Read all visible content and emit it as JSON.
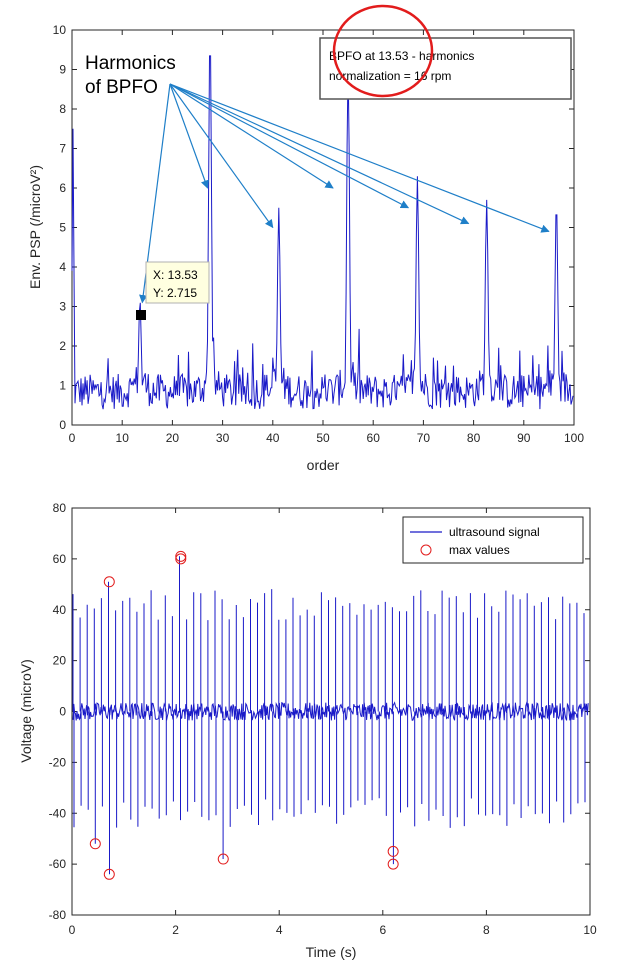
{
  "chart_data": [
    {
      "type": "line",
      "xlabel": "order",
      "ylabel": "Env. PSP (/microV²)",
      "xlim": [
        0,
        100
      ],
      "ylim": [
        0,
        10
      ],
      "xticks": [
        0,
        10,
        20,
        30,
        40,
        50,
        60,
        70,
        80,
        90,
        100
      ],
      "yticks": [
        0,
        1,
        2,
        3,
        4,
        5,
        6,
        7,
        8,
        9,
        10
      ],
      "grid": false,
      "line_color": "#1a1ac8",
      "series": [
        {
          "peaks": [
            {
              "x": 0.2,
              "y": 7.5
            },
            {
              "x": 13.53,
              "y": 2.715
            },
            {
              "x": 27.5,
              "y": 9.5
            },
            {
              "x": 41.2,
              "y": 5.0
            },
            {
              "x": 55.0,
              "y": 8.7
            },
            {
              "x": 68.8,
              "y": 5.8
            },
            {
              "x": 82.6,
              "y": 5.2
            },
            {
              "x": 96.5,
              "y": 5.2
            }
          ],
          "noise_baseline": 0.8
        }
      ],
      "annotations": {
        "harmonics_label_line1": "Harmonics",
        "harmonics_label_line2": "of BPFO",
        "box_line1": "BPFO at 13.53 - harmonics",
        "box_line2": "normalization = 16 rpm",
        "datatip_x": "X: 13.53",
        "datatip_y": "Y: 2.715",
        "arrow_color": "#1f7fc8",
        "circle_color": "#e21c1c",
        "arrow_targets": [
          {
            "x": 14,
            "y": 3.1
          },
          {
            "x": 27,
            "y": 6.0
          },
          {
            "x": 40,
            "y": 5.0
          },
          {
            "x": 52,
            "y": 6.0
          },
          {
            "x": 67,
            "y": 5.5
          },
          {
            "x": 79,
            "y": 5.1
          },
          {
            "x": 95,
            "y": 4.9
          }
        ]
      }
    },
    {
      "type": "line",
      "xlabel": "Time (s)",
      "ylabel": "Voltage (microV)",
      "xlim": [
        0,
        10
      ],
      "ylim": [
        -80,
        80
      ],
      "xticks": [
        0,
        2,
        4,
        6,
        8,
        10
      ],
      "yticks": [
        -80,
        -60,
        -40,
        -20,
        0,
        20,
        40,
        60,
        80
      ],
      "grid": false,
      "legend": "top-right",
      "series": [
        {
          "name": "ultrasound signal",
          "color": "#1a1ac8"
        },
        {
          "name": "max values",
          "color": "#e21c1c"
        }
      ],
      "max_values": [
        {
          "x": 0.45,
          "y": -52
        },
        {
          "x": 0.72,
          "y": 51
        },
        {
          "x": 0.72,
          "y": -64
        },
        {
          "x": 2.1,
          "y": 61
        },
        {
          "x": 2.1,
          "y": 60
        },
        {
          "x": 2.92,
          "y": -58
        },
        {
          "x": 6.2,
          "y": -55
        },
        {
          "x": 6.2,
          "y": -60
        }
      ],
      "impulse_period": 0.137,
      "impulse_amp_pos": 42,
      "impulse_amp_neg": -40
    }
  ]
}
